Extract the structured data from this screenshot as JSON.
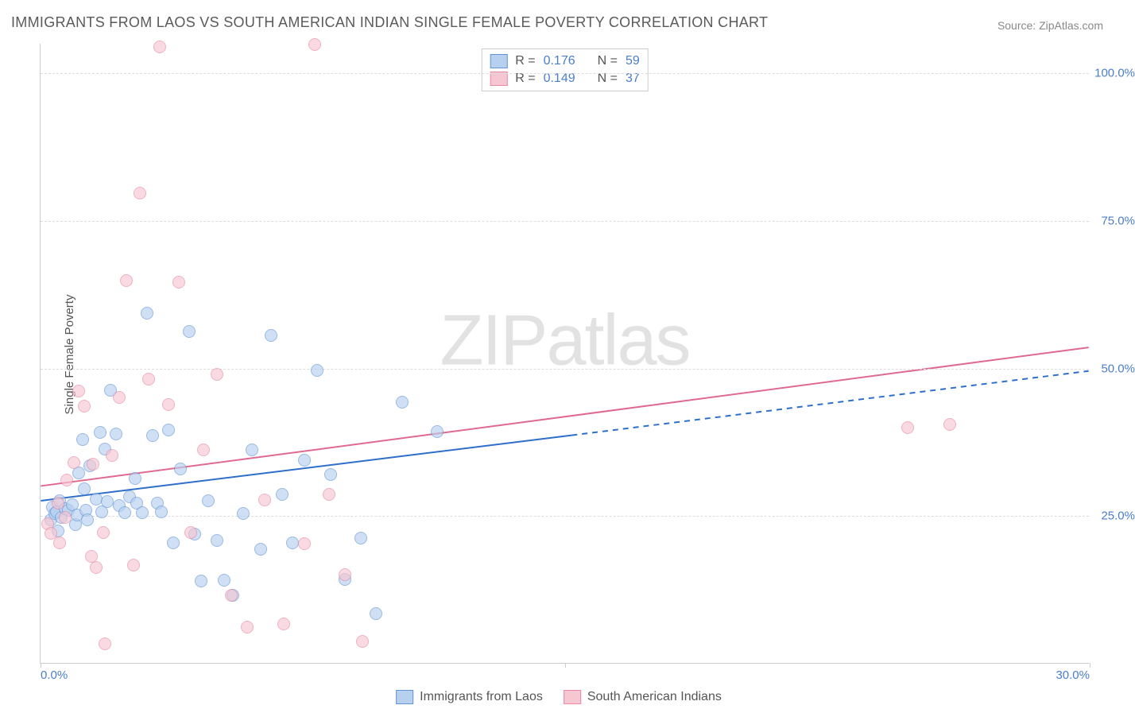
{
  "title": "IMMIGRANTS FROM LAOS VS SOUTH AMERICAN INDIAN SINGLE FEMALE POVERTY CORRELATION CHART",
  "source": "Source: ZipAtlas.com",
  "y_axis_label": "Single Female Poverty",
  "watermark": {
    "part1": "ZIP",
    "part2": "atlas"
  },
  "chart": {
    "type": "scatter",
    "xlim": [
      0,
      30
    ],
    "ylim": [
      0,
      105
    ],
    "x_ticks": [
      0.0,
      15.0,
      30.0
    ],
    "x_tick_labels": [
      "0.0%",
      "",
      "30.0%"
    ],
    "y_ticks": [
      25.0,
      50.0,
      75.0,
      100.0
    ],
    "y_tick_labels": [
      "25.0%",
      "50.0%",
      "75.0%",
      "100.0%"
    ],
    "background_color": "#ffffff",
    "grid_color": "#dddddd",
    "axis_color": "#cccccc",
    "tick_label_color": "#4a7ec9",
    "tick_fontsize": 15,
    "title_fontsize": 18,
    "title_color": "#5a5a5a",
    "point_radius": 8,
    "point_opacity": 0.65
  },
  "series": [
    {
      "id": "laos",
      "label": "Immigrants from Laos",
      "color_fill": "#b8d0ef",
      "color_stroke": "#6395d6",
      "trend_color": "#2e6fc9",
      "R": "0.176",
      "N": "59",
      "trend": {
        "x1": 0,
        "y1": 27.5,
        "x2": 15.2,
        "y2": 38.6,
        "x_dash_to": 30,
        "y_dash_to": 49.5,
        "width": 2
      },
      "points": [
        [
          0.3,
          24.3
        ],
        [
          0.35,
          26.4
        ],
        [
          0.4,
          25.3
        ],
        [
          0.45,
          25.6
        ],
        [
          0.5,
          22.4
        ],
        [
          0.55,
          27.5
        ],
        [
          0.6,
          24.7
        ],
        [
          0.7,
          26.1
        ],
        [
          0.8,
          25.9
        ],
        [
          0.9,
          26.8
        ],
        [
          1.0,
          23.4
        ],
        [
          1.05,
          25.1
        ],
        [
          1.1,
          32.2
        ],
        [
          1.2,
          37.8
        ],
        [
          1.25,
          29.5
        ],
        [
          1.3,
          25.8
        ],
        [
          1.35,
          24.2
        ],
        [
          1.4,
          33.4
        ],
        [
          1.6,
          27.8
        ],
        [
          1.7,
          39.1
        ],
        [
          1.75,
          25.6
        ],
        [
          1.85,
          36.2
        ],
        [
          1.9,
          27.3
        ],
        [
          2.0,
          46.2
        ],
        [
          2.15,
          38.8
        ],
        [
          2.25,
          26.6
        ],
        [
          2.4,
          25.4
        ],
        [
          2.55,
          28.2
        ],
        [
          2.7,
          31.2
        ],
        [
          2.75,
          27.1
        ],
        [
          2.9,
          25.4
        ],
        [
          3.05,
          59.2
        ],
        [
          3.2,
          38.5
        ],
        [
          3.35,
          27.0
        ],
        [
          3.45,
          25.6
        ],
        [
          3.65,
          39.4
        ],
        [
          3.8,
          20.3
        ],
        [
          4.0,
          32.8
        ],
        [
          4.25,
          56.1
        ],
        [
          4.4,
          21.8
        ],
        [
          4.6,
          13.9
        ],
        [
          4.8,
          27.5
        ],
        [
          5.05,
          20.8
        ],
        [
          5.25,
          14.0
        ],
        [
          5.5,
          11.5
        ],
        [
          5.8,
          25.3
        ],
        [
          6.05,
          36.1
        ],
        [
          6.3,
          19.3
        ],
        [
          6.6,
          55.5
        ],
        [
          6.9,
          28.5
        ],
        [
          7.2,
          20.3
        ],
        [
          7.55,
          34.3
        ],
        [
          7.9,
          49.6
        ],
        [
          8.3,
          31.9
        ],
        [
          8.7,
          14.2
        ],
        [
          9.15,
          21.2
        ],
        [
          9.6,
          8.4
        ],
        [
          10.35,
          44.1
        ],
        [
          11.35,
          39.2
        ]
      ]
    },
    {
      "id": "sai",
      "label": "South American Indians",
      "color_fill": "#f6c6d3",
      "color_stroke": "#e78aa3",
      "trend_color": "#e06990",
      "R": "0.149",
      "N": "37",
      "trend": {
        "x1": 0,
        "y1": 30.0,
        "x2": 30,
        "y2": 53.5,
        "width": 2
      },
      "points": [
        [
          0.2,
          23.5
        ],
        [
          0.3,
          22.0
        ],
        [
          0.5,
          27.0
        ],
        [
          0.55,
          20.3
        ],
        [
          0.7,
          24.6
        ],
        [
          0.75,
          30.9
        ],
        [
          0.95,
          33.9
        ],
        [
          1.1,
          46.0
        ],
        [
          1.25,
          43.5
        ],
        [
          1.45,
          18.0
        ],
        [
          1.5,
          33.6
        ],
        [
          1.6,
          16.2
        ],
        [
          1.8,
          22.1
        ],
        [
          1.85,
          3.2
        ],
        [
          2.05,
          35.1
        ],
        [
          2.25,
          45.0
        ],
        [
          2.45,
          64.8
        ],
        [
          2.65,
          16.5
        ],
        [
          2.85,
          79.5
        ],
        [
          3.1,
          48.1
        ],
        [
          3.4,
          104.3
        ],
        [
          3.65,
          43.8
        ],
        [
          3.95,
          64.5
        ],
        [
          4.3,
          22.1
        ],
        [
          4.65,
          36.1
        ],
        [
          5.05,
          48.9
        ],
        [
          5.45,
          11.4
        ],
        [
          5.9,
          6.1
        ],
        [
          6.4,
          27.6
        ],
        [
          6.95,
          6.6
        ],
        [
          7.55,
          20.2
        ],
        [
          7.85,
          104.7
        ],
        [
          8.25,
          28.6
        ],
        [
          8.7,
          14.9
        ],
        [
          9.2,
          3.7
        ],
        [
          24.8,
          39.9
        ],
        [
          26.0,
          40.4
        ]
      ]
    }
  ],
  "legend": {
    "R_label": "R =",
    "N_label": "N ="
  }
}
